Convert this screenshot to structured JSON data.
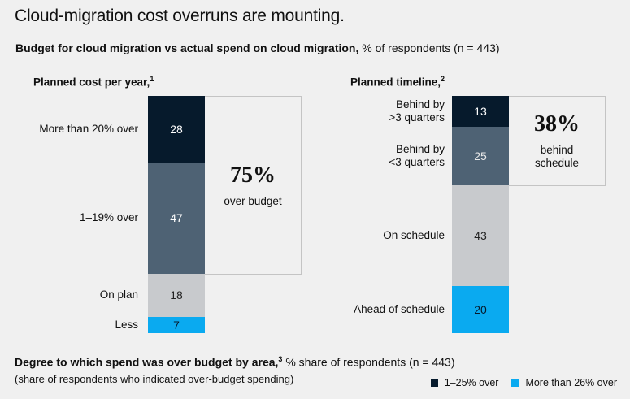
{
  "headline": "Cloud-migration cost overruns are mounting.",
  "subtitle": {
    "bold": "Budget for cloud migration vs actual spend on cloud migration,",
    "rest": " % of respondents (n = 443)"
  },
  "colors": {
    "navy": "#061a2c",
    "slate": "#4e6274",
    "light_gray": "#c8cacd",
    "cyan": "#0aaaf0",
    "box_border": "#c4c4c4"
  },
  "chart_data": [
    {
      "type": "bar",
      "stacked": true,
      "title": "Planned cost per year,",
      "footnote": "1",
      "categories": [
        "More than 20% over",
        "1–19% over",
        "On plan",
        "Less"
      ],
      "values": [
        28,
        47,
        18,
        7
      ],
      "colors": [
        "#061a2c",
        "#4e6274",
        "#c8cacd",
        "#0aaaf0"
      ],
      "text_colors": [
        "#ffffff",
        "#ffffff",
        "#222222",
        "#061a2c"
      ],
      "callout": {
        "value": "75%",
        "label": "over budget",
        "covers": 2
      }
    },
    {
      "type": "bar",
      "stacked": true,
      "title": "Planned timeline,",
      "footnote": "2",
      "categories": [
        "Behind by >3 quarters",
        "Behind by <3 quarters",
        "On schedule",
        "Ahead of schedule"
      ],
      "category_lines": [
        [
          "Behind by",
          ">3 quarters"
        ],
        [
          "Behind by",
          "<3 quarters"
        ],
        [
          "On schedule"
        ],
        [
          "Ahead of schedule"
        ]
      ],
      "values": [
        13,
        25,
        43,
        20
      ],
      "colors": [
        "#061a2c",
        "#4e6274",
        "#c8cacd",
        "#0aaaf0"
      ],
      "text_colors": [
        "#ffffff",
        "#e8e8e8",
        "#222222",
        "#061a2c"
      ],
      "callout": {
        "value": "38%",
        "label_lines": [
          "behind",
          "schedule"
        ],
        "covers": 2
      }
    }
  ],
  "footer": {
    "bold": "Degree to which spend was over budget by area,",
    "footnote": "3",
    "rest": " % share of respondents (n = 443)",
    "note": "(share of respondents who indicated over-budget spending)"
  },
  "legend": [
    {
      "label": "1–25% over",
      "color": "#061a2c"
    },
    {
      "label": "More than 26% over",
      "color": "#0aaaf0"
    }
  ]
}
